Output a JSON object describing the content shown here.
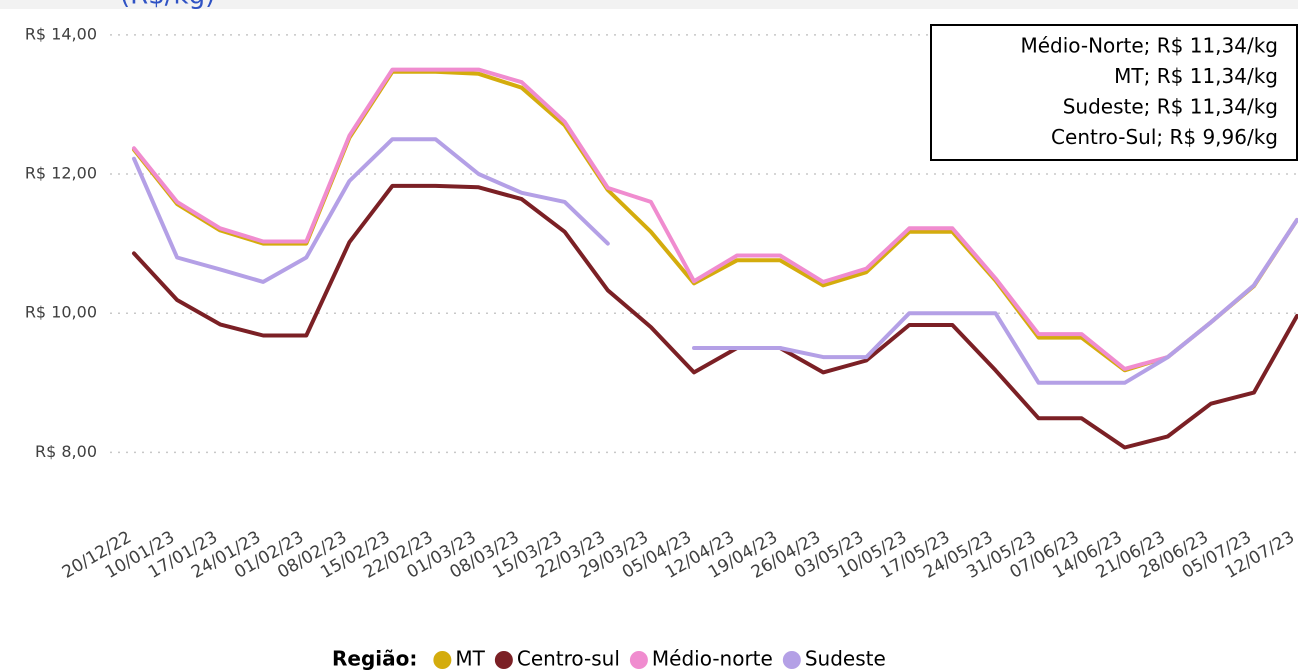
{
  "chart_data": {
    "type": "line",
    "title": "(R$/kg)",
    "categories": [
      "20/12/22",
      "10/01/23",
      "17/01/23",
      "24/01/23",
      "01/02/23",
      "08/02/23",
      "15/02/23",
      "22/02/23",
      "01/03/23",
      "08/03/23",
      "15/03/23",
      "22/03/23",
      "29/03/23",
      "05/04/23",
      "12/04/23",
      "19/04/23",
      "26/04/23",
      "03/05/23",
      "10/05/23",
      "17/05/23",
      "24/05/23",
      "31/05/23",
      "07/06/23",
      "14/06/23",
      "21/06/23",
      "28/06/23",
      "05/07/23",
      "12/07/23"
    ],
    "series": [
      {
        "name": "MT",
        "color": "#d4ac0d",
        "values": [
          12.35,
          11.57,
          11.19,
          11.0,
          11.0,
          12.52,
          13.47,
          13.47,
          13.44,
          13.24,
          12.7,
          11.77,
          11.17,
          10.43,
          10.76,
          10.76,
          10.4,
          10.59,
          11.17,
          11.17,
          10.47,
          9.65,
          9.65,
          9.18,
          9.37,
          9.87,
          10.39,
          11.34
        ]
      },
      {
        "name": "Centro-sul",
        "color": "#7b2025",
        "values": [
          10.86,
          10.19,
          9.84,
          9.68,
          9.68,
          11.02,
          11.83,
          11.83,
          11.81,
          11.64,
          11.17,
          10.33,
          9.8,
          9.15,
          9.5,
          9.5,
          9.15,
          9.32,
          9.83,
          9.83,
          9.18,
          8.49,
          8.49,
          8.07,
          8.23,
          8.7,
          8.86,
          9.96
        ]
      },
      {
        "name": "Médio-norte",
        "color": "#f08ccf",
        "values": [
          12.37,
          11.6,
          11.22,
          11.03,
          11.03,
          12.55,
          13.5,
          13.5,
          13.5,
          13.32,
          12.75,
          11.8,
          11.6,
          10.46,
          10.83,
          10.83,
          10.45,
          10.64,
          11.22,
          11.22,
          10.5,
          9.7,
          9.7,
          9.2,
          9.37,
          9.87,
          10.4,
          11.34
        ]
      },
      {
        "name": "Sudeste",
        "color": "#b4a0e6",
        "values": [
          12.22,
          10.8,
          10.63,
          10.45,
          10.8,
          11.9,
          12.5,
          12.5,
          12.0,
          11.73,
          11.6,
          11.0,
          null,
          9.5,
          9.5,
          9.5,
          9.37,
          9.37,
          10.0,
          10.0,
          10.0,
          9.0,
          9.0,
          9.0,
          9.37,
          9.87,
          10.4,
          11.34
        ]
      }
    ],
    "ylim": [
      7.0,
      14.4
    ],
    "yticks": [
      {
        "value": 8,
        "label": "R$ 8,00"
      },
      {
        "value": 10,
        "label": "R$ 10,00"
      },
      {
        "value": 12,
        "label": "R$ 12,00"
      },
      {
        "value": 14,
        "label": "R$ 14,00"
      }
    ],
    "grid": true,
    "legend_title": "Região:",
    "annotation": [
      "Médio-Norte; R$ 11,34/kg",
      "MT; R$ 11,34/kg",
      "Sudeste; R$ 11,34/kg",
      "Centro-Sul; R$ 9,96/kg"
    ]
  }
}
